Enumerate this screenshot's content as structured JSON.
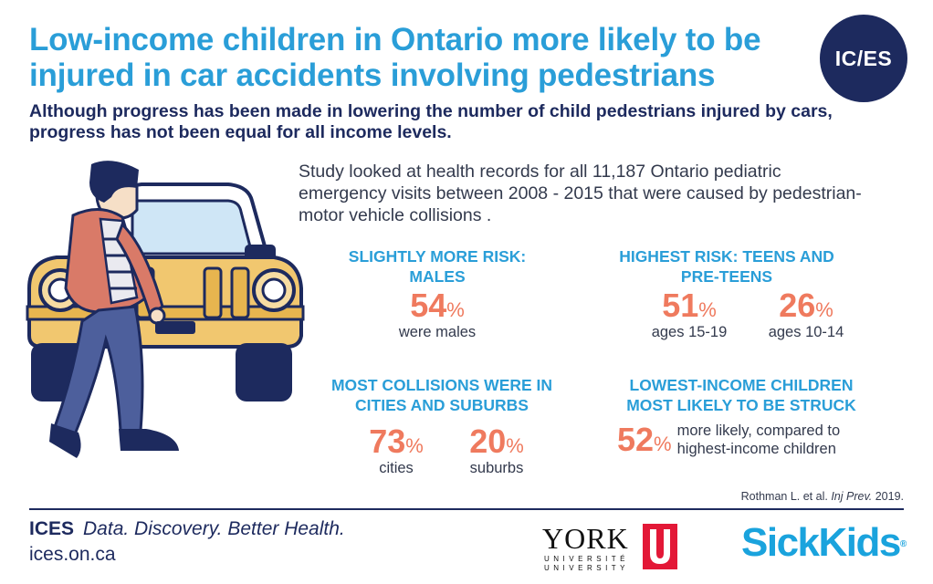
{
  "header": {
    "title": "Low-income children in Ontario more likely to be injured in car accidents involving pedestrians",
    "subtitle": "Although progress has been made in lowering the number of child pedestrians injured by cars, progress has not been equal for all income levels.",
    "logo_text": "IC/ES"
  },
  "intro": "Study looked at health records for all 11,187 Ontario pediatric emergency visits between 2008 - 2015 that were caused by pedestrian-motor vehicle collisions .",
  "stats": {
    "males": {
      "heading": "SLIGHTLY MORE RISK: MALES",
      "value": "54",
      "unit": "%",
      "caption": "were males"
    },
    "teens": {
      "heading": "HIGHEST RISK: TEENS AND PRE-TEENS",
      "items": [
        {
          "value": "51",
          "unit": "%",
          "caption": "ages 15-19"
        },
        {
          "value": "26",
          "unit": "%",
          "caption": "ages 10-14"
        }
      ]
    },
    "location": {
      "heading": "MOST COLLISIONS WERE IN CITIES AND SUBURBS",
      "items": [
        {
          "value": "73",
          "unit": "%",
          "caption": "cities"
        },
        {
          "value": "20",
          "unit": "%",
          "caption": "suburbs"
        }
      ]
    },
    "income": {
      "heading": "LOWEST-INCOME CHILDREN MOST LIKELY TO BE STRUCK",
      "value": "52",
      "unit": "%",
      "caption": "more likely, compared to highest-income children"
    }
  },
  "citation": {
    "authors": "Rothman L. et al.",
    "journal": "Inj Prev.",
    "year": "2019."
  },
  "footer": {
    "brand": "ICES",
    "tagline": "Data. Discovery. Better Health.",
    "url": "ices.on.ca",
    "york_word": "YORK",
    "york_fr": "UNIVERSITÉ",
    "york_en": "UNIVERSITY",
    "york_u": "U",
    "sickkids": "SickKids",
    "sickkids_mark": "®"
  },
  "colors": {
    "title_blue": "#2a9ed8",
    "navy": "#1d2a5e",
    "coral": "#ef7a5e",
    "car_yellow": "#f1c76f"
  },
  "icons": [
    "child-pedestrian-illustration",
    "car-illustration"
  ]
}
